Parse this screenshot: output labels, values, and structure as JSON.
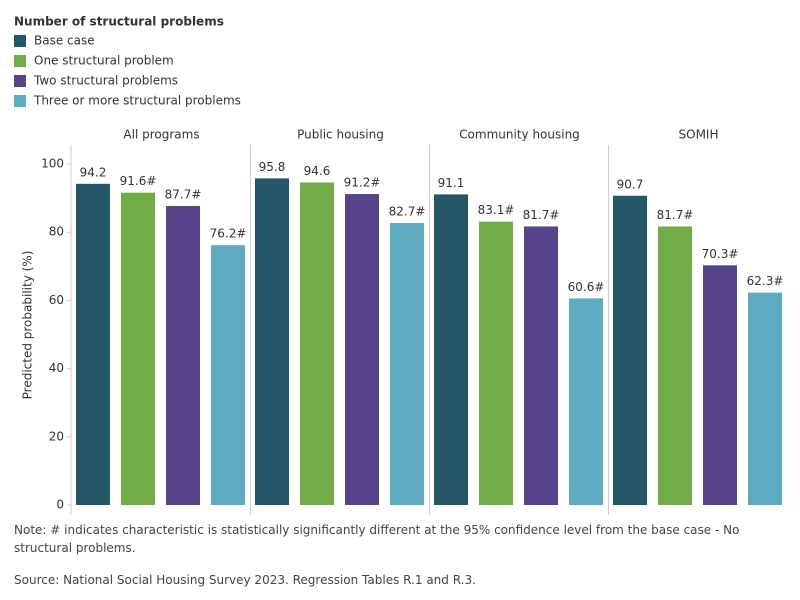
{
  "chart_data": {
    "type": "bar",
    "legend_title": "Number of structural problems",
    "y_label": "Predicted probability (%)",
    "categories": [
      "All programs",
      "Public housing",
      "Community housing",
      "SOMIH"
    ],
    "series": [
      {
        "name": "Base case",
        "color": "#265766",
        "values": [
          94.2,
          95.8,
          91.1,
          90.7
        ],
        "value_labels": [
          "94.2",
          "95.8",
          "91.1",
          "90.7"
        ]
      },
      {
        "name": "One structural problem",
        "color": "#71ad47",
        "values": [
          91.6,
          94.6,
          83.1,
          81.7
        ],
        "value_labels": [
          "91.6#",
          "94.6",
          "83.1#",
          "81.7#"
        ]
      },
      {
        "name": "Two structural problems",
        "color": "#56438a",
        "values": [
          87.7,
          91.2,
          81.7,
          70.3
        ],
        "value_labels": [
          "87.7#",
          "91.2#",
          "81.7#",
          "70.3#"
        ]
      },
      {
        "name": "Three or more structural problems",
        "color": "#5eaac1",
        "values": [
          76.2,
          82.7,
          60.6,
          62.3
        ],
        "value_labels": [
          "76.2#",
          "82.7#",
          "60.6#",
          "62.3#"
        ]
      }
    ],
    "ylim": [
      0,
      105
    ],
    "yticks": [
      0,
      20,
      40,
      60,
      80,
      100
    ],
    "note": "Note: # indicates characteristic is statistically significantly different at the 95% confidence level from the base case - No structural problems.",
    "source": "Source: National Social Housing Survey 2023. Regression Tables R.1 and R.3."
  }
}
